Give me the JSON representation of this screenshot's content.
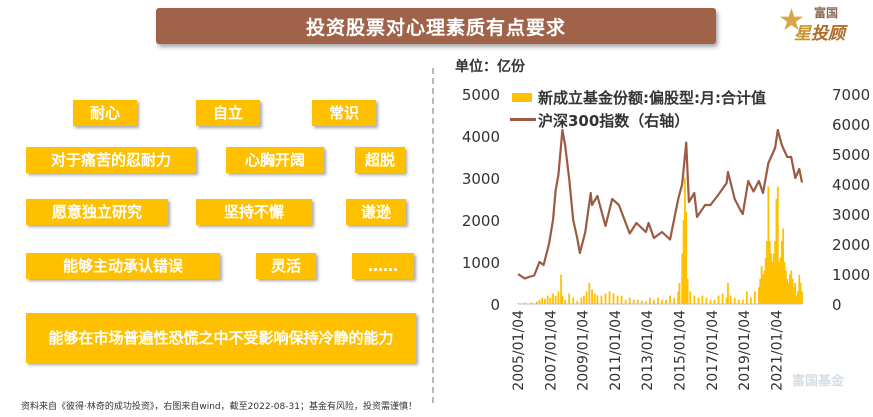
{
  "title": "投资股票对心理素质有点要求",
  "logo": {
    "top_text": "富国",
    "main_left": "星",
    "main_right": "投顾"
  },
  "tags": [
    "耐心",
    "自立",
    "常识",
    "对于痛苦的忍耐力",
    "心胸开阔",
    "超脱",
    "愿意独立研究",
    "坚持不懈",
    "谦逊",
    "能够主动承认错误",
    "灵活",
    "……",
    "能够在市场普遍性恐慌之中不受影响保持冷静的能力"
  ],
  "unit_label": "单位：亿份",
  "footnote": "资料来自《彼得·林奇的成功投资》，右图来自wind，截至2022-08-31；基金有风险，投资需谨慎！",
  "watermark": "富国基金",
  "colors": {
    "banner": "#a0634a",
    "tag": "#ffc000",
    "bar": "#ffc000",
    "line": "#9b5a44"
  },
  "chart_data": {
    "type": "bar+line",
    "legend": [
      "新成立基金份额:偏股型:月:合计值",
      "沪深300指数（右轴）"
    ],
    "y_left": {
      "min": 0,
      "max": 5000,
      "ticks": [
        0,
        1000,
        2000,
        3000,
        4000,
        5000
      ]
    },
    "y_right": {
      "min": 0,
      "max": 7000,
      "ticks": [
        0,
        1000,
        2000,
        3000,
        4000,
        5000,
        6000,
        7000
      ]
    },
    "x_range": [
      "2005-01",
      "2022-08"
    ],
    "x_ticks": [
      "2005/01/04",
      "2007/01/04",
      "2009/01/04",
      "2011/01/04",
      "2013/01/04",
      "2015/01/04",
      "2017/01/04",
      "2019/01/04",
      "2021/01/04"
    ],
    "series": [
      {
        "name": "新成立基金份额:偏股型:月:合计值",
        "kind": "bar",
        "points": [
          [
            "2005-01",
            20
          ],
          [
            "2005-06",
            30
          ],
          [
            "2005-11",
            40
          ],
          [
            "2006-03",
            60
          ],
          [
            "2006-05",
            100
          ],
          [
            "2006-07",
            150
          ],
          [
            "2006-09",
            120
          ],
          [
            "2006-11",
            200
          ],
          [
            "2007-01",
            150
          ],
          [
            "2007-03",
            250
          ],
          [
            "2007-05",
            200
          ],
          [
            "2007-07",
            300
          ],
          [
            "2007-09",
            700
          ],
          [
            "2007-10",
            200
          ],
          [
            "2007-12",
            100
          ],
          [
            "2008-03",
            250
          ],
          [
            "2008-06",
            150
          ],
          [
            "2008-09",
            80
          ],
          [
            "2008-12",
            150
          ],
          [
            "2009-02",
            200
          ],
          [
            "2009-04",
            300
          ],
          [
            "2009-06",
            500
          ],
          [
            "2009-08",
            350
          ],
          [
            "2009-10",
            250
          ],
          [
            "2009-12",
            200
          ],
          [
            "2010-03",
            200
          ],
          [
            "2010-06",
            250
          ],
          [
            "2010-09",
            300
          ],
          [
            "2010-12",
            250
          ],
          [
            "2011-03",
            200
          ],
          [
            "2011-06",
            200
          ],
          [
            "2011-09",
            100
          ],
          [
            "2011-12",
            150
          ],
          [
            "2012-03",
            100
          ],
          [
            "2012-06",
            100
          ],
          [
            "2012-09",
            80
          ],
          [
            "2012-12",
            60
          ],
          [
            "2013-03",
            150
          ],
          [
            "2013-06",
            100
          ],
          [
            "2013-09",
            150
          ],
          [
            "2013-12",
            100
          ],
          [
            "2014-03",
            100
          ],
          [
            "2014-06",
            200
          ],
          [
            "2014-09",
            150
          ],
          [
            "2014-12",
            300
          ],
          [
            "2015-01",
            500
          ],
          [
            "2015-03",
            1200
          ],
          [
            "2015-04",
            2000
          ],
          [
            "2015-05",
            3000
          ],
          [
            "2015-06",
            2200
          ],
          [
            "2015-07",
            600
          ],
          [
            "2015-09",
            300
          ],
          [
            "2015-12",
            200
          ],
          [
            "2016-03",
            150
          ],
          [
            "2016-06",
            200
          ],
          [
            "2016-09",
            150
          ],
          [
            "2016-12",
            100
          ],
          [
            "2017-03",
            100
          ],
          [
            "2017-06",
            200
          ],
          [
            "2017-09",
            250
          ],
          [
            "2017-12",
            150
          ],
          [
            "2018-01",
            500
          ],
          [
            "2018-03",
            200
          ],
          [
            "2018-06",
            150
          ],
          [
            "2018-09",
            100
          ],
          [
            "2018-12",
            100
          ],
          [
            "2019-03",
            300
          ],
          [
            "2019-06",
            150
          ],
          [
            "2019-09",
            300
          ],
          [
            "2019-12",
            400
          ],
          [
            "2020-01",
            600
          ],
          [
            "2020-02",
            900
          ],
          [
            "2020-03",
            700
          ],
          [
            "2020-04",
            800
          ],
          [
            "2020-05",
            1100
          ],
          [
            "2020-06",
            1500
          ],
          [
            "2020-07",
            2800
          ],
          [
            "2020-08",
            1500
          ],
          [
            "2020-09",
            1200
          ],
          [
            "2020-10",
            1000
          ],
          [
            "2020-11",
            1200
          ],
          [
            "2020-12",
            1500
          ],
          [
            "2021-01",
            2500
          ],
          [
            "2021-02",
            2800
          ],
          [
            "2021-03",
            1000
          ],
          [
            "2021-04",
            1100
          ],
          [
            "2021-05",
            1500
          ],
          [
            "2021-06",
            1800
          ],
          [
            "2021-07",
            1000
          ],
          [
            "2021-08",
            800
          ],
          [
            "2021-09",
            600
          ],
          [
            "2021-10",
            500
          ],
          [
            "2021-11",
            700
          ],
          [
            "2021-12",
            800
          ],
          [
            "2022-01",
            600
          ],
          [
            "2022-02",
            400
          ],
          [
            "2022-03",
            500
          ],
          [
            "2022-04",
            200
          ],
          [
            "2022-05",
            300
          ],
          [
            "2022-06",
            700
          ],
          [
            "2022-07",
            500
          ],
          [
            "2022-08",
            300
          ]
        ]
      },
      {
        "name": "沪深300指数（右轴）",
        "kind": "line",
        "axis": "right",
        "points": [
          [
            "2005-01",
            1000
          ],
          [
            "2005-06",
            850
          ],
          [
            "2005-09",
            900
          ],
          [
            "2006-01",
            950
          ],
          [
            "2006-05",
            1400
          ],
          [
            "2006-08",
            1300
          ],
          [
            "2006-12",
            2000
          ],
          [
            "2007-03",
            2800
          ],
          [
            "2007-05",
            3800
          ],
          [
            "2007-07",
            4300
          ],
          [
            "2007-10",
            5800
          ],
          [
            "2007-12",
            5300
          ],
          [
            "2008-03",
            4200
          ],
          [
            "2008-06",
            2800
          ],
          [
            "2008-09",
            2200
          ],
          [
            "2008-11",
            1700
          ],
          [
            "2009-03",
            2400
          ],
          [
            "2009-07",
            3700
          ],
          [
            "2009-08",
            3300
          ],
          [
            "2009-12",
            3600
          ],
          [
            "2010-06",
            2600
          ],
          [
            "2010-11",
            3500
          ],
          [
            "2011-04",
            3300
          ],
          [
            "2011-12",
            2350
          ],
          [
            "2012-05",
            2700
          ],
          [
            "2012-12",
            2400
          ],
          [
            "2013-02",
            2700
          ],
          [
            "2013-06",
            2200
          ],
          [
            "2013-12",
            2400
          ],
          [
            "2014-06",
            2150
          ],
          [
            "2014-12",
            3500
          ],
          [
            "2015-03",
            4000
          ],
          [
            "2015-06",
            5380
          ],
          [
            "2015-08",
            3400
          ],
          [
            "2015-12",
            3700
          ],
          [
            "2016-02",
            2900
          ],
          [
            "2016-08",
            3300
          ],
          [
            "2016-12",
            3300
          ],
          [
            "2017-06",
            3650
          ],
          [
            "2017-12",
            4030
          ],
          [
            "2018-01",
            4400
          ],
          [
            "2018-06",
            3500
          ],
          [
            "2018-10",
            3150
          ],
          [
            "2018-12",
            3000
          ],
          [
            "2019-04",
            4100
          ],
          [
            "2019-08",
            3750
          ],
          [
            "2019-12",
            4100
          ],
          [
            "2020-03",
            3700
          ],
          [
            "2020-07",
            4700
          ],
          [
            "2020-12",
            5200
          ],
          [
            "2021-02",
            5800
          ],
          [
            "2021-05",
            5300
          ],
          [
            "2021-09",
            4900
          ],
          [
            "2021-12",
            4900
          ],
          [
            "2022-03",
            4200
          ],
          [
            "2022-06",
            4500
          ],
          [
            "2022-08",
            4050
          ]
        ]
      }
    ]
  }
}
